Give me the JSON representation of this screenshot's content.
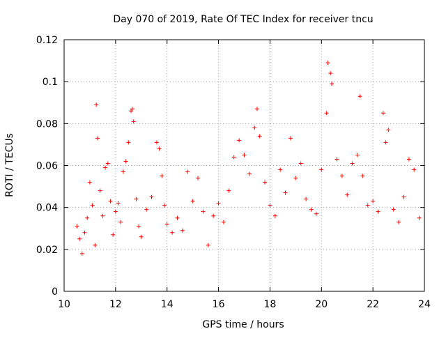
{
  "chart_data": {
    "type": "scatter",
    "title": "Day 070 of 2019, Rate Of TEC Index for receiver tncu",
    "xlabel": "GPS time / hours",
    "ylabel": "ROTI / TECUs",
    "xlim": [
      10,
      24
    ],
    "ylim": [
      0,
      0.12
    ],
    "x_ticks": [
      10,
      12,
      14,
      16,
      18,
      20,
      22,
      24
    ],
    "y_ticks": [
      0,
      0.02,
      0.04,
      0.06,
      0.08,
      0.1,
      0.12
    ],
    "x_tick_labels": [
      "10",
      "12",
      "14",
      "16",
      "18",
      "20",
      "22",
      "24"
    ],
    "y_tick_labels": [
      "0",
      "0.02",
      "0.04",
      "0.06",
      "0.08",
      "0.1",
      "0.12"
    ],
    "grid": true,
    "marker": "+",
    "series": [
      {
        "name": "ROTI",
        "color": "#ff0000",
        "x": [
          10.5,
          10.6,
          10.7,
          10.8,
          10.9,
          11.0,
          11.1,
          11.2,
          11.25,
          11.3,
          11.4,
          11.5,
          11.6,
          11.7,
          11.8,
          11.9,
          12.0,
          12.1,
          12.2,
          12.3,
          12.4,
          12.5,
          12.6,
          12.65,
          12.7,
          12.8,
          12.9,
          13.0,
          13.2,
          13.4,
          13.6,
          13.7,
          13.8,
          13.9,
          14.0,
          14.2,
          14.4,
          14.6,
          14.8,
          15.0,
          15.2,
          15.4,
          15.6,
          15.8,
          16.0,
          16.2,
          16.4,
          16.6,
          16.8,
          17.0,
          17.2,
          17.4,
          17.5,
          17.6,
          17.8,
          18.0,
          18.2,
          18.4,
          18.6,
          18.8,
          19.0,
          19.2,
          19.4,
          19.6,
          19.8,
          20.0,
          20.2,
          20.25,
          20.35,
          20.4,
          20.6,
          20.8,
          21.0,
          21.2,
          21.4,
          21.5,
          21.6,
          21.8,
          22.0,
          22.2,
          22.4,
          22.5,
          22.6,
          22.8,
          23.0,
          23.2,
          23.4,
          23.6,
          23.8
        ],
        "y": [
          0.031,
          0.025,
          0.018,
          0.028,
          0.035,
          0.052,
          0.041,
          0.022,
          0.089,
          0.073,
          0.048,
          0.036,
          0.059,
          0.061,
          0.043,
          0.027,
          0.038,
          0.042,
          0.033,
          0.057,
          0.062,
          0.071,
          0.086,
          0.087,
          0.081,
          0.044,
          0.031,
          0.026,
          0.039,
          0.045,
          0.071,
          0.068,
          0.055,
          0.041,
          0.032,
          0.028,
          0.035,
          0.029,
          0.057,
          0.043,
          0.054,
          0.038,
          0.022,
          0.036,
          0.042,
          0.033,
          0.048,
          0.064,
          0.072,
          0.065,
          0.056,
          0.078,
          0.087,
          0.074,
          0.052,
          0.041,
          0.036,
          0.058,
          0.047,
          0.073,
          0.054,
          0.061,
          0.044,
          0.039,
          0.037,
          0.058,
          0.085,
          0.109,
          0.104,
          0.099,
          0.063,
          0.055,
          0.046,
          0.061,
          0.065,
          0.093,
          0.055,
          0.041,
          0.043,
          0.038,
          0.085,
          0.071,
          0.077,
          0.039,
          0.033,
          0.045,
          0.063,
          0.058,
          0.035
        ]
      }
    ]
  }
}
